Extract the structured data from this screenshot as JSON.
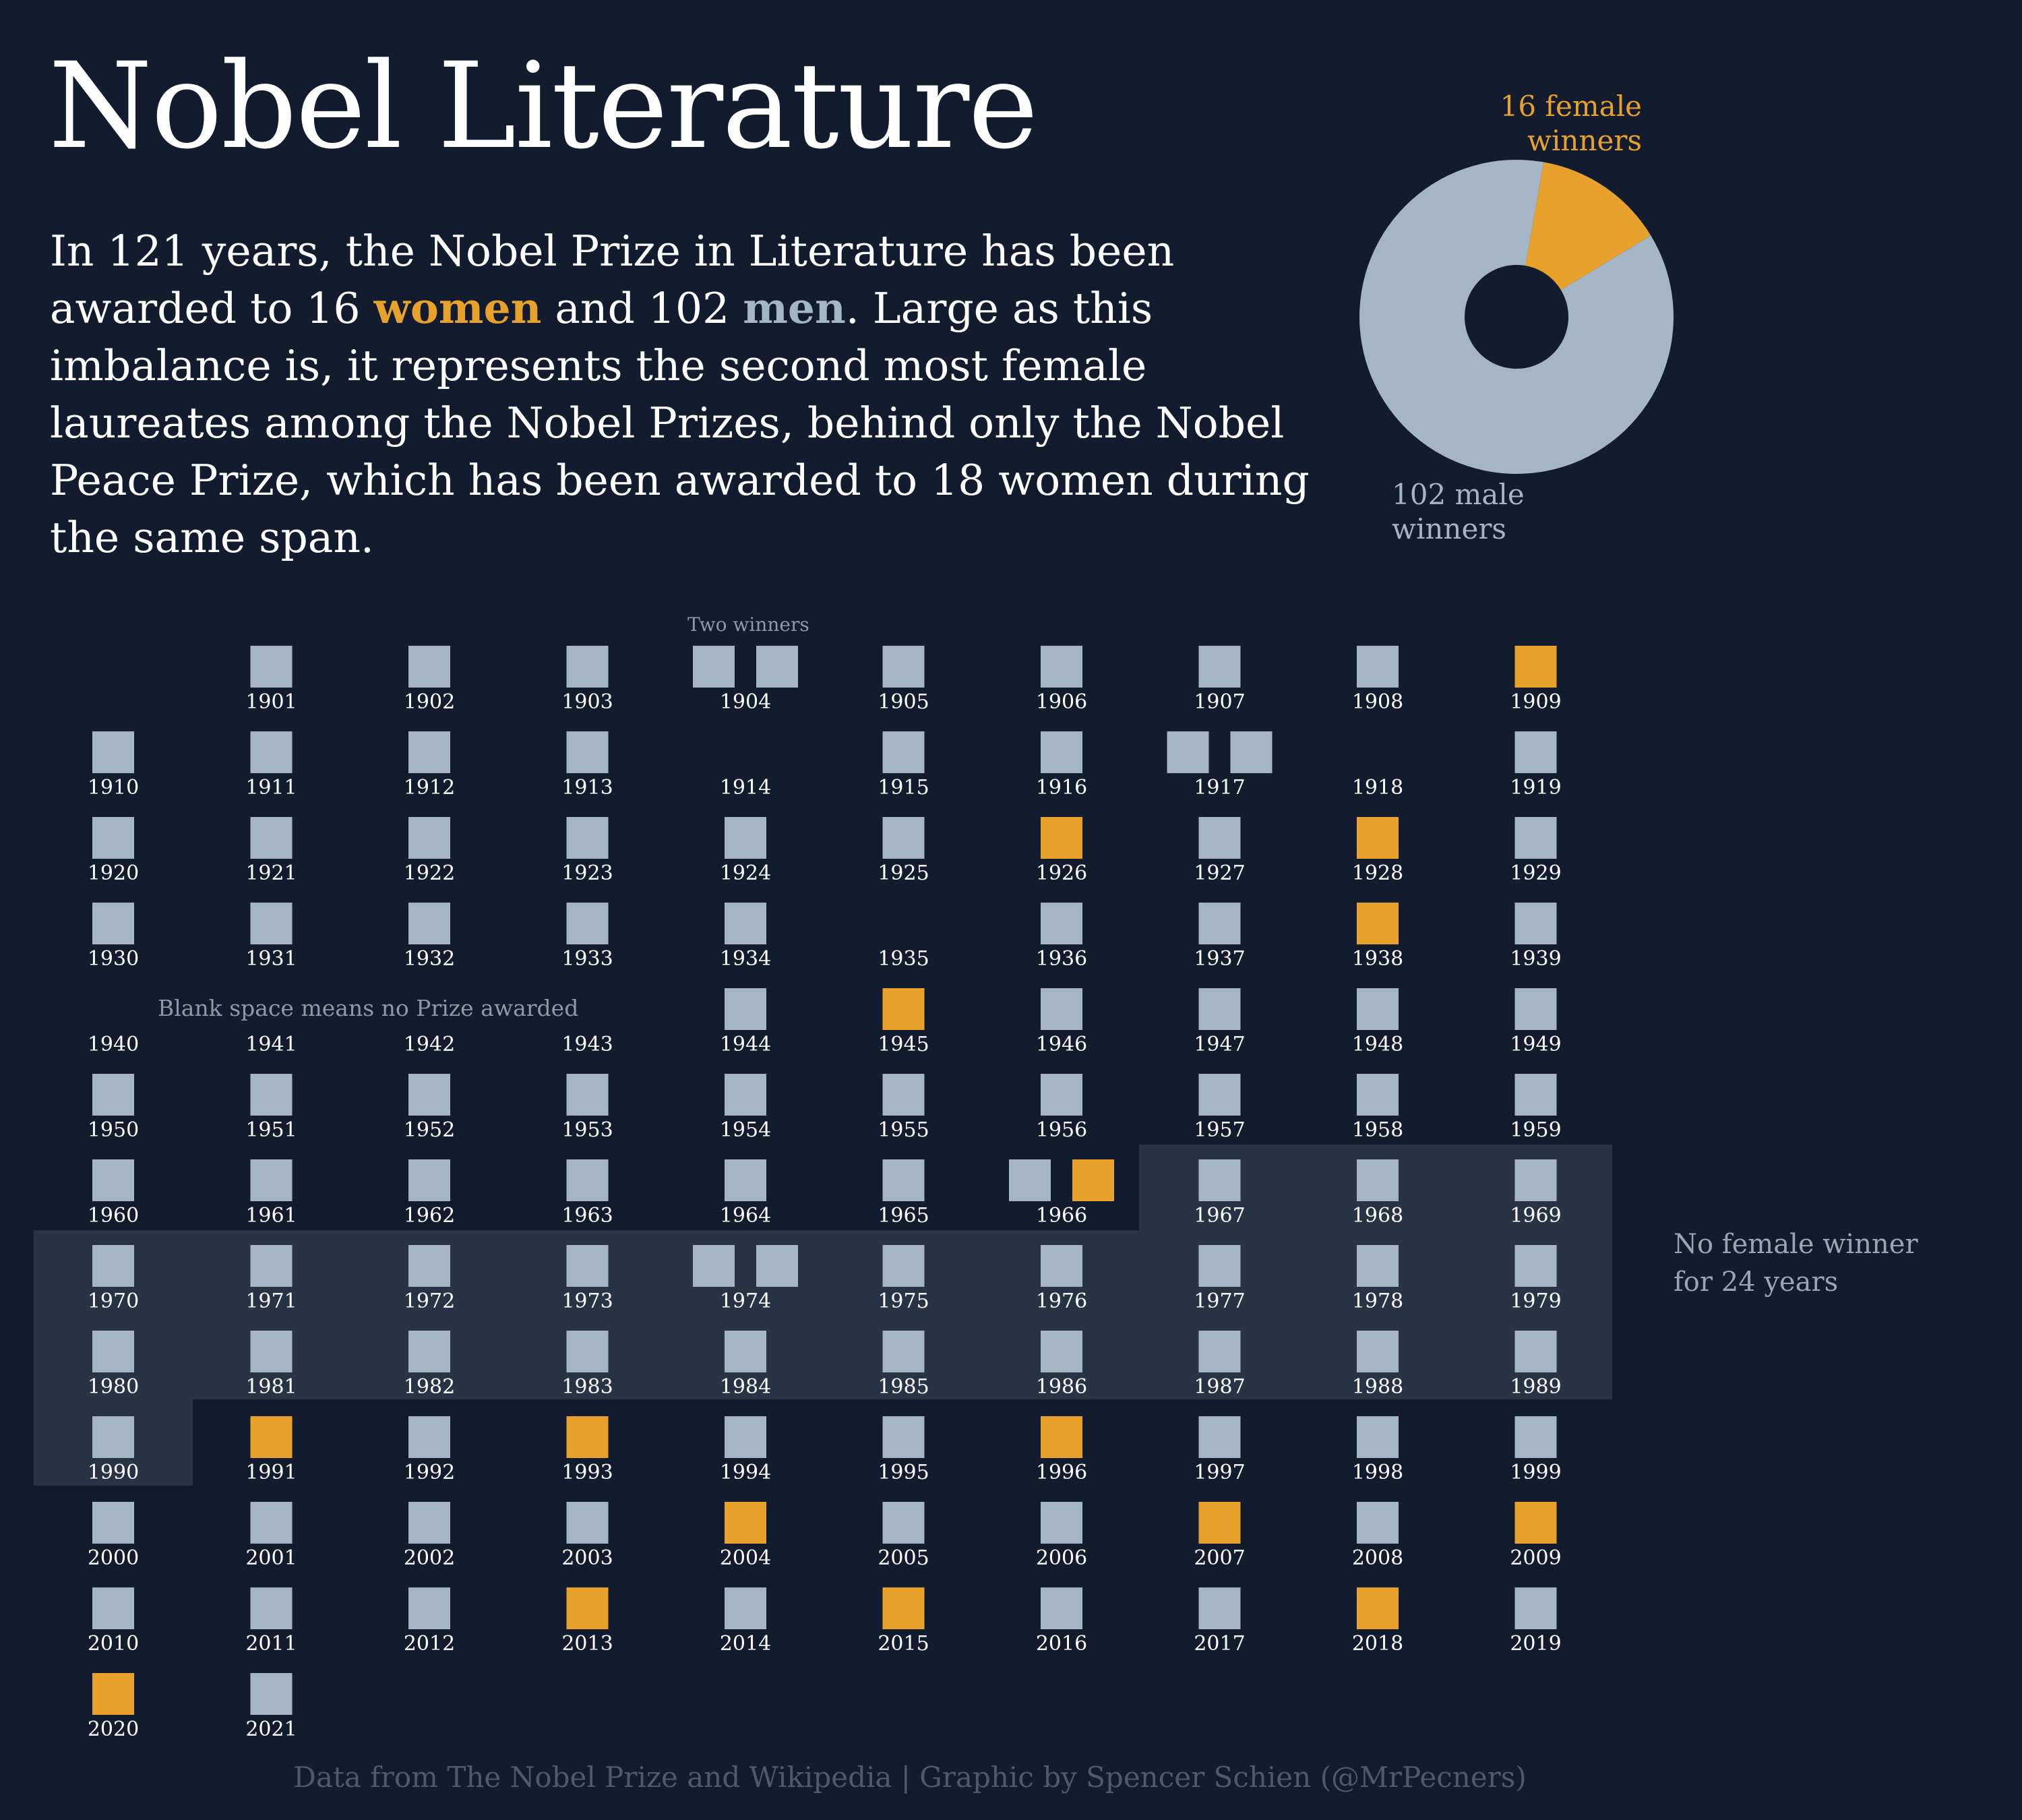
{
  "header": {
    "title": "Nobel Literature",
    "intro": {
      "part1": "In 121 years, the Nobel Prize in Literature has been awarded to 16 ",
      "women_word": "women",
      "part2": " and 102 ",
      "men_word": "men",
      "part3": ". Large as this imbalance is, it represents the second most female laureates among the Nobel Prizes, behind only the Nobel Peace Prize, which has been awarded to 18 women during the same span."
    }
  },
  "colors": {
    "background": "#131c2e",
    "female": "#e8a22c",
    "male": "#a4b5c5",
    "highlight_band": "#283345",
    "muted_text": "#8e99a8",
    "source_text": "#4d5a6d"
  },
  "pie": {
    "female_label": "16 female\nwinners",
    "male_label": "102 male\nwinners"
  },
  "annotations": {
    "two_winners": "Two winners",
    "blank_space": "Blank space means no Prize awarded",
    "gap_note": "No female winner\nfor 24 years"
  },
  "footer": {
    "source": "Data from The Nobel Prize and Wikipedia | Graphic by Spencer Schien (@MrPecners)"
  },
  "chart_data": [
    {
      "type": "pie",
      "variant": "donut",
      "slices": [
        {
          "label": "16 female winners",
          "value": 16
        },
        {
          "label": "102 male winners",
          "value": 102
        }
      ]
    },
    {
      "type": "table",
      "variant": "waffle-calendar",
      "columns_per_row": 10,
      "legend": {
        "F": "woman laureate",
        "M": "man laureate",
        "empty": "no prize awarded"
      },
      "highlight_range": [
        "1967",
        "1990"
      ],
      "highlight_label": "No female winner for 24 years",
      "years": {
        "1901": [
          "M"
        ],
        "1902": [
          "M"
        ],
        "1903": [
          "M"
        ],
        "1904": [
          "M",
          "M"
        ],
        "1905": [
          "M"
        ],
        "1906": [
          "M"
        ],
        "1907": [
          "M"
        ],
        "1908": [
          "M"
        ],
        "1909": [
          "F"
        ],
        "1910": [
          "M"
        ],
        "1911": [
          "M"
        ],
        "1912": [
          "M"
        ],
        "1913": [
          "M"
        ],
        "1914": [],
        "1915": [
          "M"
        ],
        "1916": [
          "M"
        ],
        "1917": [
          "M",
          "M"
        ],
        "1918": [],
        "1919": [
          "M"
        ],
        "1920": [
          "M"
        ],
        "1921": [
          "M"
        ],
        "1922": [
          "M"
        ],
        "1923": [
          "M"
        ],
        "1924": [
          "M"
        ],
        "1925": [
          "M"
        ],
        "1926": [
          "F"
        ],
        "1927": [
          "M"
        ],
        "1928": [
          "F"
        ],
        "1929": [
          "M"
        ],
        "1930": [
          "M"
        ],
        "1931": [
          "M"
        ],
        "1932": [
          "M"
        ],
        "1933": [
          "M"
        ],
        "1934": [
          "M"
        ],
        "1935": [],
        "1936": [
          "M"
        ],
        "1937": [
          "M"
        ],
        "1938": [
          "F"
        ],
        "1939": [
          "M"
        ],
        "1940": [],
        "1941": [],
        "1942": [],
        "1943": [],
        "1944": [
          "M"
        ],
        "1945": [
          "F"
        ],
        "1946": [
          "M"
        ],
        "1947": [
          "M"
        ],
        "1948": [
          "M"
        ],
        "1949": [
          "M"
        ],
        "1950": [
          "M"
        ],
        "1951": [
          "M"
        ],
        "1952": [
          "M"
        ],
        "1953": [
          "M"
        ],
        "1954": [
          "M"
        ],
        "1955": [
          "M"
        ],
        "1956": [
          "M"
        ],
        "1957": [
          "M"
        ],
        "1958": [
          "M"
        ],
        "1959": [
          "M"
        ],
        "1960": [
          "M"
        ],
        "1961": [
          "M"
        ],
        "1962": [
          "M"
        ],
        "1963": [
          "M"
        ],
        "1964": [
          "M"
        ],
        "1965": [
          "M"
        ],
        "1966": [
          "M",
          "F"
        ],
        "1967": [
          "M"
        ],
        "1968": [
          "M"
        ],
        "1969": [
          "M"
        ],
        "1970": [
          "M"
        ],
        "1971": [
          "M"
        ],
        "1972": [
          "M"
        ],
        "1973": [
          "M"
        ],
        "1974": [
          "M",
          "M"
        ],
        "1975": [
          "M"
        ],
        "1976": [
          "M"
        ],
        "1977": [
          "M"
        ],
        "1978": [
          "M"
        ],
        "1979": [
          "M"
        ],
        "1980": [
          "M"
        ],
        "1981": [
          "M"
        ],
        "1982": [
          "M"
        ],
        "1983": [
          "M"
        ],
        "1984": [
          "M"
        ],
        "1985": [
          "M"
        ],
        "1986": [
          "M"
        ],
        "1987": [
          "M"
        ],
        "1988": [
          "M"
        ],
        "1989": [
          "M"
        ],
        "1990": [
          "M"
        ],
        "1991": [
          "F"
        ],
        "1992": [
          "M"
        ],
        "1993": [
          "F"
        ],
        "1994": [
          "M"
        ],
        "1995": [
          "M"
        ],
        "1996": [
          "F"
        ],
        "1997": [
          "M"
        ],
        "1998": [
          "M"
        ],
        "1999": [
          "M"
        ],
        "2000": [
          "M"
        ],
        "2001": [
          "M"
        ],
        "2002": [
          "M"
        ],
        "2003": [
          "M"
        ],
        "2004": [
          "F"
        ],
        "2005": [
          "M"
        ],
        "2006": [
          "M"
        ],
        "2007": [
          "F"
        ],
        "2008": [
          "M"
        ],
        "2009": [
          "F"
        ],
        "2010": [
          "M"
        ],
        "2011": [
          "M"
        ],
        "2012": [
          "M"
        ],
        "2013": [
          "F"
        ],
        "2014": [
          "M"
        ],
        "2015": [
          "F"
        ],
        "2016": [
          "M"
        ],
        "2017": [
          "M"
        ],
        "2018": [
          "F"
        ],
        "2019": [
          "M"
        ],
        "2020": [
          "F"
        ],
        "2021": [
          "M"
        ]
      }
    }
  ]
}
